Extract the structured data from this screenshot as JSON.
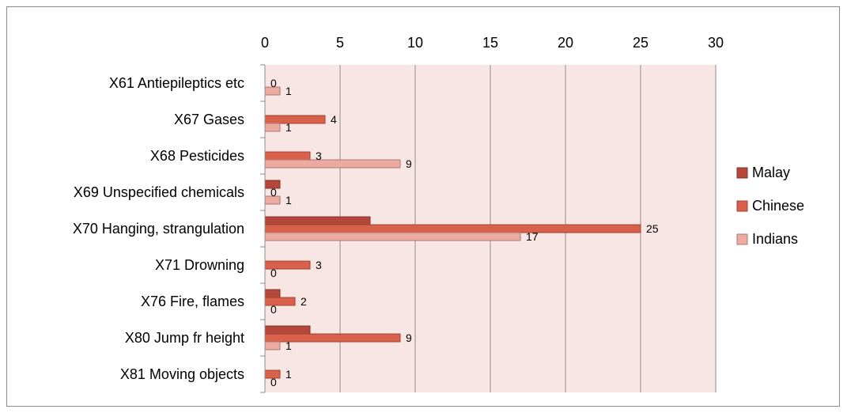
{
  "chart_data": {
    "type": "bar",
    "orientation": "horizontal",
    "title": "",
    "xlabel": "",
    "ylabel": "",
    "xlim": [
      0,
      30
    ],
    "x_ticks": [
      "0",
      "5",
      "10",
      "15",
      "20",
      "25",
      "30"
    ],
    "x_axis_position": "top",
    "grid": true,
    "legend_position": "right",
    "categories": [
      "X61 Antiepileptics etc",
      "X67 Gases",
      "X68 Pesticides",
      "X69 Unspecified chemicals",
      "X70 Hanging, strangulation",
      "X71 Drowning",
      "X76 Fire, flames",
      "X80 Jump fr height",
      "X81 Moving objects"
    ],
    "series": [
      {
        "name": "Malay",
        "color": "#b5473a",
        "values": [
          0,
          0,
          0,
          1,
          7,
          0,
          1,
          3,
          0
        ],
        "data_labels": false
      },
      {
        "name": "Chinese",
        "color": "#d9604a",
        "values": [
          0,
          4,
          3,
          0,
          25,
          3,
          2,
          9,
          1
        ],
        "data_labels": true
      },
      {
        "name": "Indians",
        "color": "#ecaaa0",
        "values": [
          1,
          1,
          9,
          1,
          17,
          0,
          0,
          1,
          0
        ],
        "data_labels": true
      }
    ],
    "plot_background": "#f7e6e4"
  }
}
